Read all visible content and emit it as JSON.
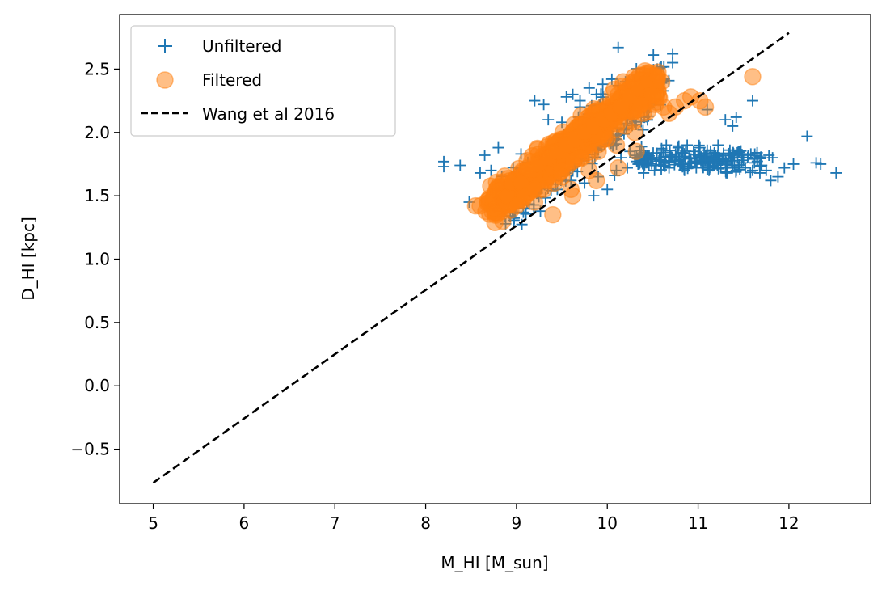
{
  "chart_data": {
    "type": "scatter",
    "title": "",
    "xlabel": "M_HI [M_sun]",
    "ylabel": "D_HI [kpc]",
    "xlim": [
      4.63,
      12.9
    ],
    "ylim": [
      -0.93,
      2.93
    ],
    "xticks": [
      5,
      6,
      7,
      8,
      9,
      10,
      11,
      12
    ],
    "xtick_labels": [
      "5",
      "6",
      "7",
      "8",
      "9",
      "10",
      "11",
      "12"
    ],
    "yticks": [
      -0.5,
      0.0,
      0.5,
      1.0,
      1.5,
      2.0,
      2.5
    ],
    "ytick_labels": [
      "−0.5",
      "0.0",
      "0.5",
      "1.0",
      "1.5",
      "2.0",
      "2.5"
    ],
    "grid": false,
    "legend_position": "upper-left",
    "colors": {
      "unfiltered": "#1f77b4",
      "filtered": "#ff7f0e",
      "relation": "#000000"
    },
    "series": [
      {
        "name": "Unfiltered",
        "marker": "plus",
        "x": [
          8.2,
          8.2,
          8.38,
          8.48,
          8.6,
          8.65,
          8.72,
          8.8,
          8.82,
          9.0,
          9.05,
          9.2,
          9.3,
          9.35,
          9.45,
          9.5,
          9.55,
          9.6,
          9.62,
          9.7,
          9.75,
          9.8,
          9.85,
          9.88,
          9.9,
          9.95,
          10.0,
          10.05,
          10.08,
          10.1,
          10.12,
          10.15,
          10.2,
          10.22,
          10.25,
          10.3,
          10.35,
          10.4,
          10.42,
          10.45,
          10.48,
          10.5,
          10.52,
          10.55,
          10.58,
          10.6,
          10.62,
          10.65,
          10.68,
          10.7,
          10.72,
          10.75,
          10.78,
          10.8,
          10.82,
          10.85,
          10.88,
          10.9,
          10.92,
          10.95,
          10.98,
          11.0,
          11.02,
          11.05,
          11.08,
          11.1,
          11.12,
          11.15,
          11.18,
          11.2,
          11.22,
          11.25,
          11.28,
          11.3,
          11.32,
          11.35,
          11.38,
          11.4,
          11.42,
          11.45,
          11.48,
          11.5,
          11.52,
          11.55,
          11.6,
          11.62,
          11.65,
          11.68,
          11.7,
          11.75,
          11.78,
          11.8,
          11.82,
          11.88,
          11.95,
          12.05,
          12.2,
          12.3,
          12.35,
          12.52,
          11.1,
          11.3,
          11.42,
          11.6,
          11.38,
          10.12,
          10.72,
          10.3,
          10.5,
          9.95,
          9.7
        ],
        "y": [
          1.77,
          1.73,
          1.74,
          1.45,
          1.68,
          1.82,
          1.7,
          1.88,
          1.6,
          1.68,
          1.83,
          2.25,
          2.22,
          2.1,
          1.55,
          2.08,
          2.28,
          1.62,
          2.3,
          2.25,
          1.6,
          2.35,
          1.5,
          2.3,
          1.65,
          2.38,
          1.55,
          2.42,
          1.66,
          1.7,
          2.67,
          1.8,
          2.4,
          1.72,
          1.85,
          2.35,
          1.75,
          1.68,
          1.82,
          1.76,
          2.45,
          1.8,
          1.7,
          2.5,
          1.78,
          1.86,
          1.74,
          1.9,
          1.72,
          1.82,
          2.62,
          1.78,
          1.88,
          1.75,
          1.84,
          1.7,
          1.9,
          1.8,
          1.76,
          1.85,
          1.72,
          1.82,
          1.88,
          1.75,
          1.78,
          1.86,
          1.7,
          1.8,
          1.84,
          1.76,
          1.9,
          1.72,
          1.82,
          1.78,
          1.68,
          1.86,
          1.74,
          1.8,
          1.7,
          1.84,
          1.76,
          1.78,
          1.72,
          1.82,
          1.7,
          1.76,
          1.84,
          1.68,
          1.74,
          1.7,
          1.82,
          1.62,
          1.8,
          1.65,
          1.72,
          1.75,
          1.97,
          1.76,
          1.75,
          1.68,
          2.18,
          2.1,
          2.12,
          2.25,
          2.05,
          2.37,
          2.55,
          2.4,
          2.45,
          2.3,
          2.2
        ],
        "note_density": "dense cloud between x 8.8 and 10.6, y 1.3 to 2.45"
      },
      {
        "name": "Filtered",
        "marker": "circle",
        "x": [
          8.55,
          8.6,
          8.7,
          8.78,
          8.85,
          8.9,
          8.95,
          9.0,
          9.05,
          9.1,
          9.15,
          9.2,
          9.25,
          9.3,
          9.35,
          9.4,
          9.42,
          9.45,
          9.5,
          9.55,
          9.6,
          9.65,
          9.7,
          9.75,
          9.8,
          9.85,
          9.9,
          9.95,
          10.0,
          10.05,
          10.1,
          10.15,
          10.2,
          10.25,
          10.3,
          10.35,
          10.4,
          10.45,
          10.5,
          10.55,
          10.6,
          10.62,
          10.68,
          10.75,
          10.85,
          10.92,
          11.02,
          11.08,
          11.6,
          9.62,
          9.88,
          10.12,
          10.32,
          9.2,
          9.5
        ],
        "y": [
          1.42,
          1.42,
          1.48,
          1.55,
          1.3,
          1.5,
          1.6,
          1.42,
          1.6,
          1.5,
          1.7,
          1.45,
          1.75,
          1.55,
          1.8,
          1.35,
          1.6,
          1.85,
          1.7,
          1.9,
          1.55,
          1.95,
          1.8,
          2.0,
          1.7,
          2.05,
          1.85,
          2.1,
          1.95,
          2.15,
          1.9,
          2.2,
          2.05,
          2.28,
          2.0,
          2.35,
          2.15,
          2.4,
          2.3,
          2.45,
          2.4,
          2.2,
          2.15,
          2.2,
          2.25,
          2.28,
          2.25,
          2.2,
          2.44,
          1.5,
          1.62,
          1.72,
          1.85,
          1.55,
          1.65
        ],
        "note_density": "dense elongated band from (8.6, 1.42) to (10.6, 2.45)"
      },
      {
        "name": "Wang et al 2016",
        "marker": "dashed-line",
        "x": [
          5,
          12
        ],
        "y": [
          -0.765,
          2.785
        ]
      }
    ]
  }
}
